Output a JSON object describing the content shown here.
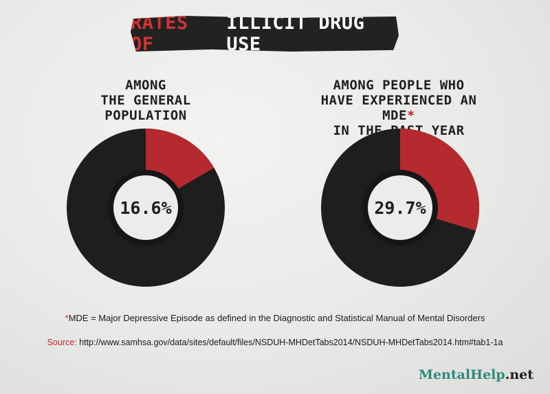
{
  "title": {
    "accent": "RATES OF",
    "main": "ILLICIT DRUG USE"
  },
  "chart_data": [
    {
      "type": "pie",
      "title_lines": [
        "AMONG",
        "THE GENERAL",
        "POPULATION"
      ],
      "title_star": "",
      "value_percent": 16.6,
      "center_label": "16.6%",
      "colors": {
        "highlight": "#b52a2f",
        "rest": "#1e1e1e",
        "hole": "#ececeb"
      }
    },
    {
      "type": "pie",
      "title_lines": [
        "AMONG PEOPLE WHO",
        "HAVE EXPERIENCED AN MDE",
        "IN THE PAST YEAR"
      ],
      "title_star": "*",
      "value_percent": 29.7,
      "center_label": "29.7%",
      "colors": {
        "highlight": "#b52a2f",
        "rest": "#1e1e1e",
        "hole": "#ececeb"
      }
    }
  ],
  "footnotes": {
    "mde_star": "*",
    "mde_text": "MDE = Major Depressive Episode as defined in the Diagnostic and Statistical Manual of Mental Disorders",
    "source_label": "Source:",
    "source_url": "http://www.samhsa.gov/data/sites/default/files/NSDUH-MHDetTabs2014/NSDUH-MHDetTabs2014.htm#tab1-1a"
  },
  "brand": {
    "part1": "MentalHelp",
    "part2": ".net"
  }
}
